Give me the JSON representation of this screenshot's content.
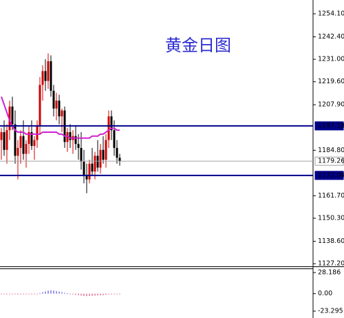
{
  "chart_data": {
    "type": "candlestick",
    "title": "黄金日图",
    "categories": [
      null,
      null,
      null,
      null,
      null,
      null,
      null,
      null,
      null,
      null,
      null,
      null,
      null,
      null,
      null,
      null,
      null,
      null,
      null,
      null,
      null,
      null,
      null,
      null,
      null,
      null,
      null,
      null,
      null,
      null,
      null,
      null,
      null,
      null,
      null,
      null,
      null,
      null,
      null,
      null,
      null,
      null,
      null,
      null
    ],
    "open": [
      1190,
      1194,
      1185,
      1195,
      1207,
      1198,
      1182,
      1186,
      1192,
      1183,
      1188,
      1194,
      1187,
      1190,
      1197,
      1218,
      1225,
      1220,
      1230,
      1215,
      1206,
      1210,
      1202,
      1205,
      1189,
      1194,
      1190,
      1192,
      1188,
      1186,
      1179,
      1172,
      1170,
      1178,
      1174,
      1182,
      1176,
      1185,
      1180,
      1190,
      1202,
      1195,
      1186,
      1181
    ],
    "high": [
      1196,
      1200,
      1198,
      1210,
      1212,
      1205,
      1190,
      1195,
      1200,
      1190,
      1197,
      1200,
      1192,
      1200,
      1222,
      1228,
      1231,
      1234,
      1233,
      1218,
      1214,
      1213,
      1206,
      1207,
      1196,
      1198,
      1195,
      1197,
      1193,
      1194,
      1185,
      1178,
      1180,
      1186,
      1184,
      1190,
      1188,
      1192,
      1193,
      1205,
      1205,
      1200,
      1190,
      1183
    ],
    "low": [
      1180,
      1182,
      1178,
      1190,
      1195,
      1178,
      1170,
      1178,
      1180,
      1176,
      1183,
      1185,
      1180,
      1186,
      1193,
      1210,
      1215,
      1216,
      1212,
      1202,
      1200,
      1198,
      1194,
      1186,
      1184,
      1186,
      1183,
      1185,
      1180,
      1175,
      1168,
      1163,
      1168,
      1172,
      1170,
      1174,
      1173,
      1178,
      1176,
      1186,
      1190,
      1182,
      1178,
      1177
    ],
    "close": [
      1194,
      1185,
      1195,
      1207,
      1198,
      1182,
      1186,
      1192,
      1183,
      1188,
      1194,
      1187,
      1190,
      1197,
      1218,
      1225,
      1220,
      1230,
      1215,
      1206,
      1210,
      1202,
      1205,
      1189,
      1194,
      1190,
      1192,
      1188,
      1186,
      1179,
      1172,
      1170,
      1178,
      1174,
      1182,
      1176,
      1185,
      1180,
      1190,
      1202,
      1195,
      1186,
      1181,
      1179.26
    ],
    "up_color": "#d00000",
    "down_color": "#000000",
    "ma": {
      "color": "#d020d0",
      "values": [
        1212,
        1208,
        1204,
        1200,
        1197,
        1195,
        1194,
        1194,
        1194,
        1193,
        1193,
        1193,
        1193,
        1193,
        1193,
        1194,
        1194,
        1194,
        1194,
        1194,
        1194,
        1193,
        1193,
        1192,
        1192,
        1191,
        1191,
        1191,
        1191,
        1191,
        1191,
        1191,
        1191,
        1192,
        1192,
        1192,
        1193,
        1193,
        1194,
        1195,
        1196,
        1196,
        1195,
        1195
      ]
    },
    "levels": [
      {
        "value": 1197.18,
        "color": "#00008b",
        "text_color": "#ffffff"
      },
      {
        "value": 1179.26,
        "color": "#a0a0a0",
        "text_color": "#000000"
      },
      {
        "value": 1172.04,
        "color": "#00008b",
        "text_color": "#ffffff"
      }
    ],
    "ylim": [
      1125.5,
      1261.1
    ],
    "yticks": [
      {
        "value": 1254.1,
        "label": "1254.10"
      },
      {
        "value": 1242.4,
        "label": "1242.40"
      },
      {
        "value": 1231,
        "label": "1231.00"
      },
      {
        "value": 1219.6,
        "label": "1219.60"
      },
      {
        "value": 1207.9,
        "label": "1207.90"
      },
      {
        "value": 1184.8,
        "label": "1184.80"
      },
      {
        "value": 1161.7,
        "label": "1161.70"
      },
      {
        "value": 1150.3,
        "label": "1150.30"
      },
      {
        "value": 1138.6,
        "label": "1138.60"
      },
      {
        "value": 1127.2,
        "label": "1127.20"
      }
    ],
    "indicator": {
      "up_color": "#3030d0",
      "down_color": "#d02060",
      "values": [
        -0.5,
        -0.8,
        -1,
        -0.6,
        -0.3,
        -0.8,
        -1.2,
        -1,
        -0.7,
        -0.9,
        -0.6,
        -0.4,
        -0.3,
        -0.2,
        0.8,
        2,
        3,
        4,
        4.5,
        4.2,
        3.5,
        2.8,
        2,
        1.2,
        0.5,
        -0.3,
        -1,
        -1.5,
        -2,
        -2.5,
        -3,
        -3.2,
        -3,
        -2.8,
        -2.6,
        -2.4,
        -2.2,
        -2,
        -1.6,
        -1,
        -0.5,
        -0.6,
        -0.8,
        -0.9
      ],
      "ylim": [
        -32.5,
        33.7
      ],
      "yticks": [
        28.186,
        {
          "value": 0,
          "label": "0.00"
        },
        -23.295
      ]
    }
  }
}
